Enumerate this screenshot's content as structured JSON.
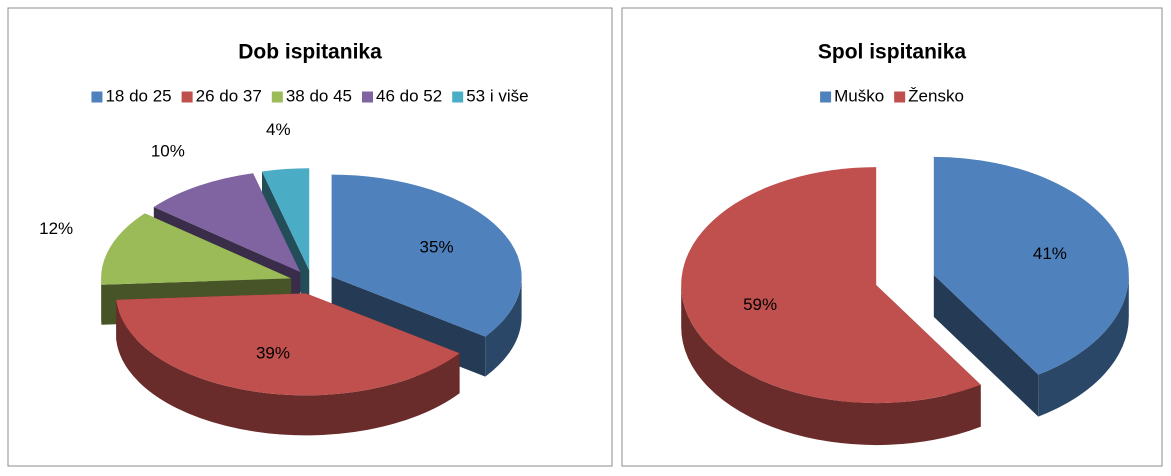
{
  "chart_data": [
    {
      "type": "pie",
      "title": "Dob ispitanika",
      "categories": [
        "18 do 25",
        "26 do 37",
        "38 do 45",
        "46 do 52",
        "53 i više"
      ],
      "values": [
        35,
        39,
        12,
        10,
        4
      ],
      "value_labels": [
        "35%",
        "39%",
        "12%",
        "10%",
        "4%"
      ],
      "colors": [
        "#4f81bd",
        "#c0504d",
        "#9bbb59",
        "#8064a2",
        "#4bacc6"
      ],
      "legend": "top"
    },
    {
      "type": "pie",
      "title": "Spol ispitanika",
      "categories": [
        "Muško",
        "Žensko"
      ],
      "values": [
        41,
        59
      ],
      "value_labels": [
        "41%",
        "59%"
      ],
      "colors": [
        "#4f81bd",
        "#c0504d"
      ],
      "legend": "top"
    }
  ]
}
